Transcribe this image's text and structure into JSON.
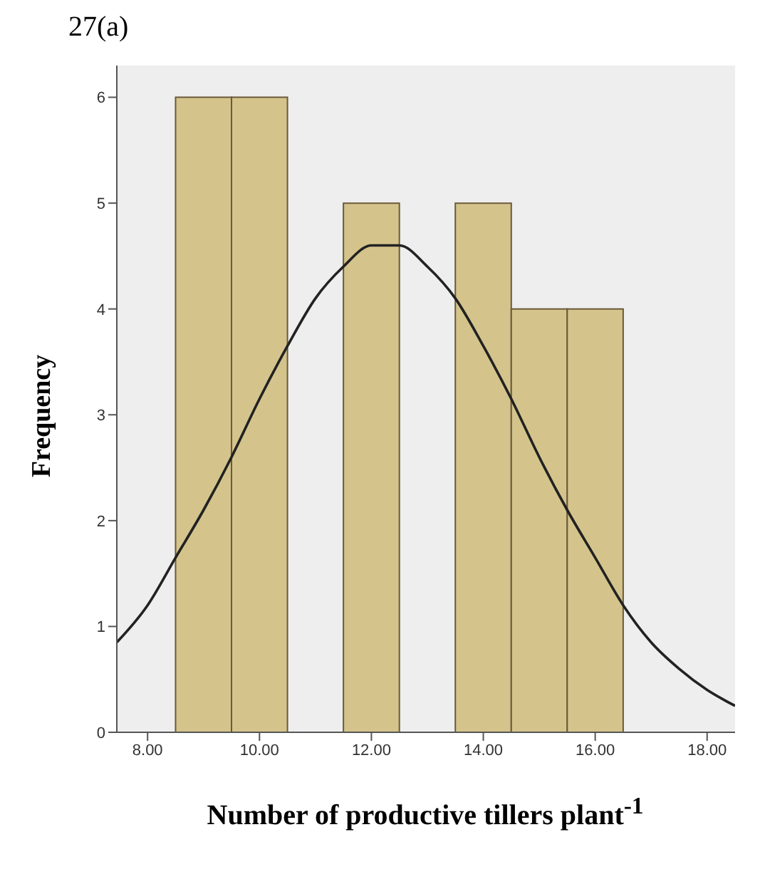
{
  "chart_data": {
    "type": "histogram",
    "title": "27(a)",
    "xlabel": "Number of productive tillers plant$^{-1}$",
    "ylabel": "Frequency",
    "bins": [
      8.5,
      9.5,
      10.5,
      11.5,
      12.5,
      13.5,
      14.5,
      15.5,
      16.5
    ],
    "values": [
      6,
      6,
      0,
      5,
      0,
      5,
      4,
      4
    ],
    "color": "#d4c48c",
    "series": [
      {
        "type": "line",
        "color": "#222222",
        "x": [
          7.45,
          8,
          8.5,
          9,
          9.5,
          10,
          10.5,
          11,
          11.5,
          12,
          12.25,
          12.5,
          13,
          13.5,
          14,
          14.5,
          15,
          15.5,
          16,
          16.5,
          17,
          17.5,
          18,
          18.5
        ],
        "values": [
          0.85,
          1.2,
          1.65,
          2.1,
          2.6,
          3.15,
          3.65,
          4.1,
          4.4,
          4.6,
          4.6,
          4.6,
          4.4,
          4.1,
          3.65,
          3.15,
          2.6,
          2.1,
          1.65,
          1.2,
          0.85,
          0.6,
          0.4,
          0.25
        ]
      }
    ],
    "xlim": [
      7.45,
      18.5
    ],
    "xticks": [
      {
        "value": 8,
        "label": "8.00"
      },
      {
        "value": 10,
        "label": "10.00"
      },
      {
        "value": 12,
        "label": "12.00"
      },
      {
        "value": 14,
        "label": "14.00"
      },
      {
        "value": 16,
        "label": "16.00"
      },
      {
        "value": 18,
        "label": "18.00"
      }
    ],
    "ylim": [
      0,
      6.3
    ],
    "yticks": [
      0,
      1,
      2,
      3,
      4,
      5,
      6
    ],
    "grid": false,
    "legend": false,
    "marker": "none"
  }
}
